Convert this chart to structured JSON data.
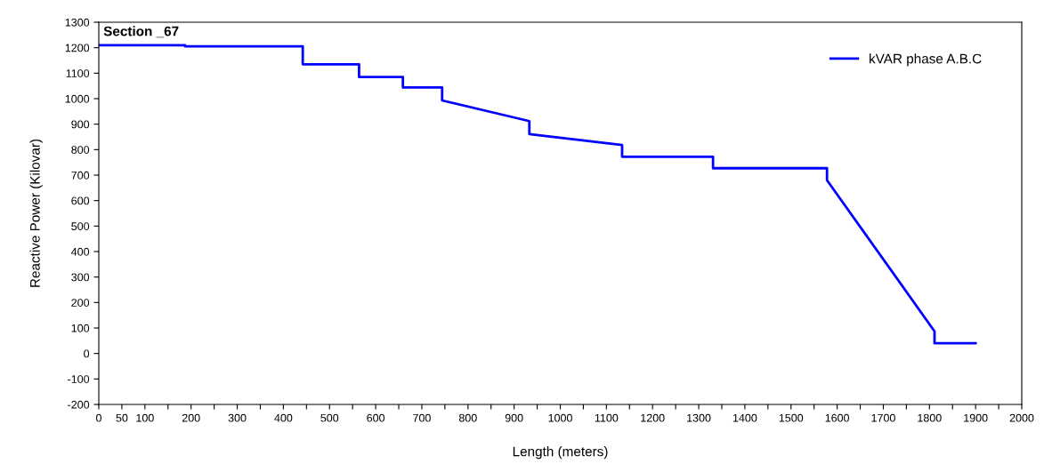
{
  "chart_data": {
    "type": "line",
    "title": "Section _67",
    "xlabel": "Length (meters)",
    "ylabel": "Reactive Power (Kilovar)",
    "series": [
      {
        "name": "kVAR phase A.B.C",
        "color": "#0000ff",
        "x": [
          0,
          187,
          187,
          442,
          442,
          564,
          564,
          659,
          659,
          744,
          744,
          933,
          933,
          1134,
          1134,
          1331,
          1331,
          1578,
          1578,
          1811,
          1811,
          1900
        ],
        "values": [
          1210,
          1210,
          1205,
          1205,
          1135,
          1135,
          1085,
          1085,
          1044,
          1044,
          993,
          912,
          861,
          818,
          772,
          772,
          727,
          727,
          680,
          87,
          40,
          40
        ]
      }
    ],
    "xlim": [
      0,
      2000
    ],
    "xticks": [
      0,
      50,
      100,
      {
        "value": 150,
        "label": null
      },
      200,
      {
        "value": 250,
        "label": null
      },
      300,
      {
        "value": 350,
        "label": null
      },
      400,
      {
        "value": 450,
        "label": null
      },
      500,
      {
        "value": 550,
        "label": null
      },
      600,
      {
        "value": 650,
        "label": null
      },
      700,
      {
        "value": 750,
        "label": null
      },
      800,
      {
        "value": 850,
        "label": null
      },
      900,
      {
        "value": 950,
        "label": null
      },
      1000,
      {
        "value": 1050,
        "label": null
      },
      1100,
      {
        "value": 1150,
        "label": null
      },
      1200,
      {
        "value": 1250,
        "label": null
      },
      1300,
      {
        "value": 1350,
        "label": null
      },
      1400,
      {
        "value": 1450,
        "label": null
      },
      1500,
      {
        "value": 1550,
        "label": null
      },
      1600,
      {
        "value": 1650,
        "label": null
      },
      1700,
      {
        "value": 1750,
        "label": null
      },
      1800,
      {
        "value": 1850,
        "label": null
      },
      1900,
      {
        "value": 1950,
        "label": null
      },
      2000
    ],
    "ylim": [
      -200,
      1300
    ],
    "yticks": [
      -200,
      -100,
      0,
      100,
      200,
      300,
      400,
      500,
      600,
      700,
      800,
      900,
      1000,
      1100,
      1200,
      1300
    ],
    "grid": false,
    "legend": "top right",
    "marker": "none",
    "line_style": "solid"
  }
}
